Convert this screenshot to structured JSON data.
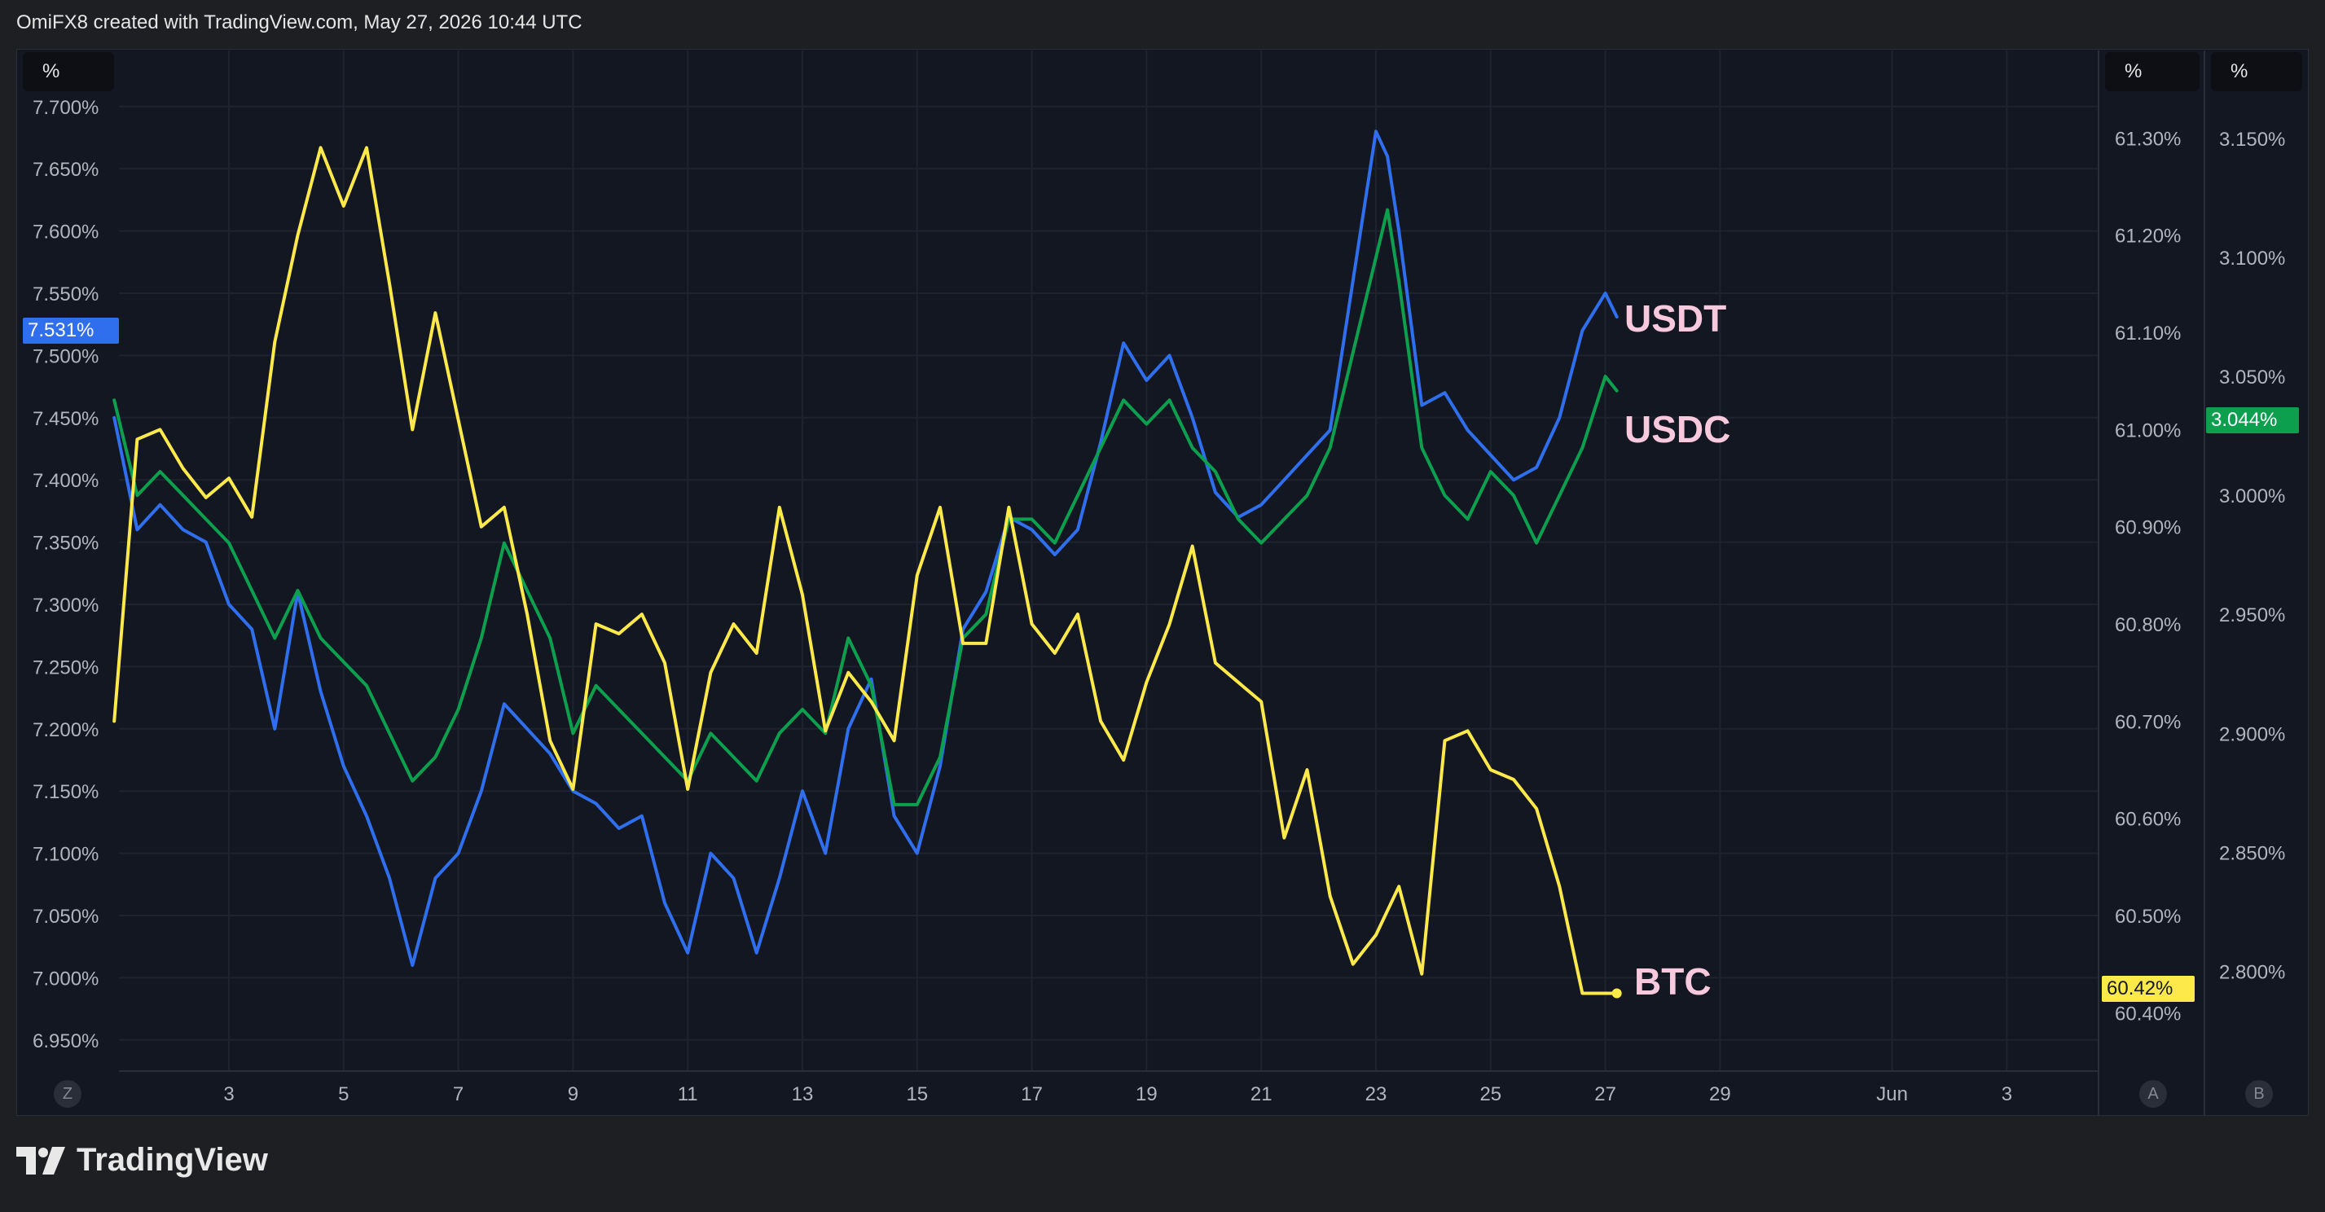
{
  "header": {
    "attribution": "OmiFX8 created with TradingView.com, May 27, 2026 10:44 UTC"
  },
  "brand": {
    "name": "TradingView"
  },
  "axes": {
    "left_unit": "%",
    "a_unit": "%",
    "b_unit": "%",
    "left_letter": "Z",
    "a_letter": "A",
    "b_letter": "B"
  },
  "badges": {
    "usdt": "7.531%",
    "usdc": "3.044%",
    "btc": "60.42%"
  },
  "labels": {
    "usdt": "USDT",
    "usdc": "USDC",
    "btc": "BTC"
  },
  "colors": {
    "usdt": "#2f6fed",
    "usdc": "#0ca04e",
    "btc": "#fde94a"
  },
  "chart_data": {
    "type": "line",
    "title": "",
    "x_ticks": [
      "3",
      "5",
      "7",
      "9",
      "11",
      "13",
      "15",
      "17",
      "19",
      "21",
      "23",
      "25",
      "27",
      "29",
      "Jun",
      "3"
    ],
    "left_axis": {
      "ticks": [
        "7.700%",
        "7.650%",
        "7.600%",
        "7.550%",
        "7.500%",
        "7.450%",
        "7.400%",
        "7.350%",
        "7.300%",
        "7.250%",
        "7.200%",
        "7.150%",
        "7.100%",
        "7.050%",
        "7.000%",
        "6.950%"
      ],
      "range": [
        6.925,
        7.745
      ]
    },
    "axis_a": {
      "ticks": [
        "61.30%",
        "61.20%",
        "61.10%",
        "61.00%",
        "60.90%",
        "60.80%",
        "60.70%",
        "60.60%",
        "60.50%",
        "60.40%"
      ],
      "range": [
        60.34,
        61.39
      ]
    },
    "axis_b": {
      "ticks": [
        "3.150%",
        "3.100%",
        "3.050%",
        "3.000%",
        "2.950%",
        "2.900%",
        "2.850%",
        "2.800%"
      ],
      "range": [
        2.758,
        3.187
      ]
    },
    "series": [
      {
        "name": "USDT",
        "axis": "left",
        "x": [
          1.0,
          1.4,
          1.8,
          2.2,
          2.6,
          3.0,
          3.4,
          3.8,
          4.2,
          4.6,
          5.0,
          5.4,
          5.8,
          6.2,
          6.6,
          7.0,
          7.4,
          7.8,
          8.2,
          8.6,
          9.0,
          9.4,
          9.8,
          10.2,
          10.6,
          11.0,
          11.4,
          11.8,
          12.2,
          12.6,
          13.0,
          13.4,
          13.8,
          14.2,
          14.6,
          15.0,
          15.4,
          15.8,
          16.2,
          16.6,
          17.0,
          17.4,
          17.8,
          18.2,
          18.6,
          19.0,
          19.4,
          19.8,
          20.2,
          20.6,
          21.0,
          21.4,
          21.8,
          22.2,
          22.6,
          23.0,
          23.2,
          23.4,
          23.8,
          24.2,
          24.6,
          25.0,
          25.4,
          25.8,
          26.2,
          26.6,
          27.0,
          27.2
        ],
        "y": [
          7.45,
          7.36,
          7.38,
          7.36,
          7.35,
          7.3,
          7.28,
          7.2,
          7.31,
          7.23,
          7.17,
          7.13,
          7.08,
          7.01,
          7.08,
          7.1,
          7.15,
          7.22,
          7.2,
          7.18,
          7.15,
          7.14,
          7.12,
          7.13,
          7.06,
          7.02,
          7.1,
          7.08,
          7.02,
          7.08,
          7.15,
          7.1,
          7.2,
          7.24,
          7.13,
          7.1,
          7.17,
          7.28,
          7.31,
          7.37,
          7.36,
          7.34,
          7.36,
          7.43,
          7.51,
          7.48,
          7.5,
          7.45,
          7.39,
          7.37,
          7.38,
          7.4,
          7.42,
          7.44,
          7.56,
          7.68,
          7.66,
          7.6,
          7.46,
          7.47,
          7.44,
          7.42,
          7.4,
          7.41,
          7.45,
          7.52,
          7.55,
          7.531
        ]
      },
      {
        "name": "USDC",
        "axis": "b",
        "x": [
          1.0,
          1.4,
          1.8,
          2.2,
          2.6,
          3.0,
          3.4,
          3.8,
          4.2,
          4.6,
          5.0,
          5.4,
          5.8,
          6.2,
          6.6,
          7.0,
          7.4,
          7.8,
          8.2,
          8.6,
          9.0,
          9.4,
          9.8,
          10.2,
          10.6,
          11.0,
          11.4,
          11.8,
          12.2,
          12.6,
          13.0,
          13.4,
          13.8,
          14.2,
          14.6,
          15.0,
          15.4,
          15.8,
          16.2,
          16.6,
          17.0,
          17.4,
          17.8,
          18.2,
          18.6,
          19.0,
          19.4,
          19.8,
          20.2,
          20.6,
          21.0,
          21.4,
          21.8,
          22.2,
          22.6,
          23.0,
          23.2,
          23.4,
          23.8,
          24.2,
          24.6,
          25.0,
          25.4,
          25.8,
          26.2,
          26.6,
          27.0,
          27.2
        ],
        "y": [
          3.04,
          3.0,
          3.01,
          3.0,
          2.99,
          2.98,
          2.96,
          2.94,
          2.96,
          2.94,
          2.93,
          2.92,
          2.9,
          2.88,
          2.89,
          2.91,
          2.94,
          2.98,
          2.96,
          2.94,
          2.9,
          2.92,
          2.91,
          2.9,
          2.89,
          2.88,
          2.9,
          2.89,
          2.88,
          2.9,
          2.91,
          2.9,
          2.94,
          2.92,
          2.87,
          2.87,
          2.89,
          2.94,
          2.95,
          2.99,
          2.99,
          2.98,
          3.0,
          3.02,
          3.04,
          3.03,
          3.04,
          3.02,
          3.01,
          2.99,
          2.98,
          2.99,
          3.0,
          3.02,
          3.06,
          3.1,
          3.12,
          3.09,
          3.02,
          3.0,
          2.99,
          3.01,
          3.0,
          2.98,
          3.0,
          3.02,
          3.05,
          3.044
        ]
      },
      {
        "name": "BTC",
        "axis": "a",
        "x": [
          1.0,
          1.4,
          1.8,
          2.2,
          2.6,
          3.0,
          3.4,
          3.8,
          4.2,
          4.6,
          5.0,
          5.4,
          5.8,
          6.2,
          6.6,
          7.0,
          7.4,
          7.8,
          8.2,
          8.6,
          9.0,
          9.4,
          9.8,
          10.2,
          10.6,
          11.0,
          11.4,
          11.8,
          12.2,
          12.6,
          13.0,
          13.4,
          13.8,
          14.2,
          14.6,
          15.0,
          15.4,
          15.8,
          16.2,
          16.6,
          17.0,
          17.4,
          17.8,
          18.2,
          18.6,
          19.0,
          19.4,
          19.8,
          20.2,
          20.6,
          21.0,
          21.4,
          21.8,
          22.2,
          22.6,
          23.0,
          23.4,
          23.8,
          24.2,
          24.6,
          25.0,
          25.4,
          25.8,
          26.2,
          26.6,
          27.0,
          27.2
        ],
        "y": [
          60.7,
          60.99,
          61.0,
          60.96,
          60.93,
          60.95,
          60.91,
          61.09,
          61.2,
          61.29,
          61.23,
          61.29,
          61.15,
          61.0,
          61.12,
          61.01,
          60.9,
          60.92,
          60.81,
          60.68,
          60.63,
          60.8,
          60.79,
          60.81,
          60.76,
          60.63,
          60.75,
          60.8,
          60.77,
          60.92,
          60.83,
          60.69,
          60.75,
          60.72,
          60.68,
          60.85,
          60.92,
          60.78,
          60.78,
          60.92,
          60.8,
          60.77,
          60.81,
          60.7,
          60.66,
          60.74,
          60.8,
          60.88,
          60.76,
          60.74,
          60.72,
          60.58,
          60.65,
          60.52,
          60.45,
          60.48,
          60.53,
          60.44,
          60.68,
          60.69,
          60.65,
          60.64,
          60.61,
          60.53,
          60.42,
          60.42,
          60.42
        ]
      }
    ],
    "grid": true
  }
}
